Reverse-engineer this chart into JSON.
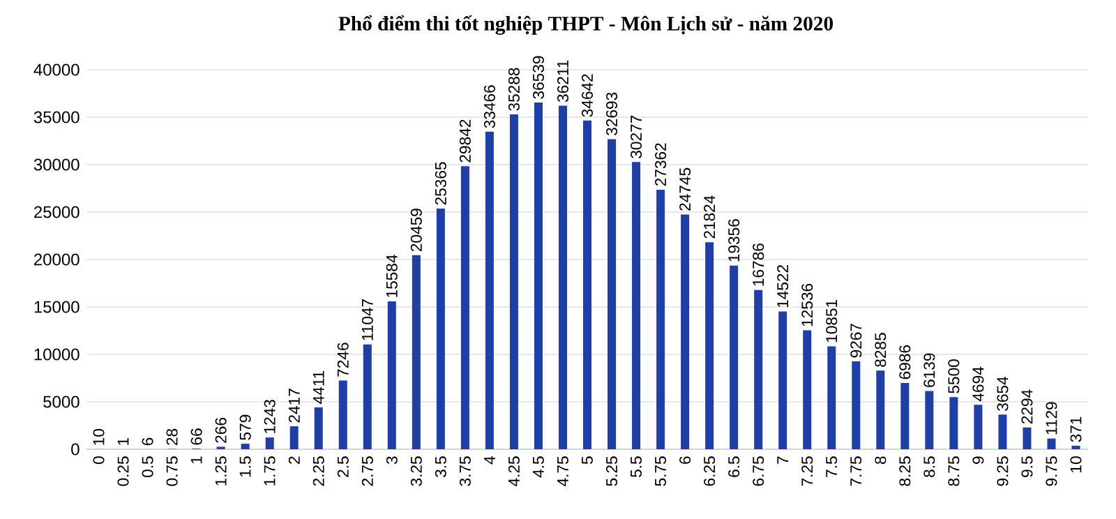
{
  "chart_data": {
    "type": "bar",
    "title": "Phổ điểm thi tốt nghiệp THPT - Môn Lịch sử - năm 2020",
    "categories": [
      "0",
      "0.25",
      "0.5",
      "0.75",
      "1",
      "1.25",
      "1.5",
      "1.75",
      "2",
      "2.25",
      "2.5",
      "2.75",
      "3",
      "3.25",
      "3.5",
      "3.75",
      "4",
      "4.25",
      "4.5",
      "4.75",
      "5",
      "5.25",
      "5.5",
      "5.75",
      "6",
      "6.25",
      "6.5",
      "6.75",
      "7",
      "7.25",
      "7.5",
      "7.75",
      "8",
      "8.25",
      "8.5",
      "8.75",
      "9",
      "9.25",
      "9.5",
      "9.75",
      "10"
    ],
    "values": [
      10,
      1,
      6,
      28,
      66,
      266,
      579,
      1243,
      2417,
      4411,
      7246,
      11047,
      15584,
      20459,
      25365,
      29842,
      33466,
      35288,
      36539,
      36211,
      34642,
      32693,
      30277,
      27362,
      24745,
      21824,
      19356,
      16786,
      14522,
      12536,
      10851,
      9267,
      8285,
      6986,
      6139,
      5500,
      4694,
      3654,
      2294,
      1129,
      371
    ],
    "color": "#1f3fa8",
    "ylim": [
      0,
      40000
    ],
    "yticks": [
      0,
      5000,
      10000,
      15000,
      20000,
      25000,
      30000,
      35000,
      40000
    ],
    "grid": "y",
    "data_labels": true
  }
}
